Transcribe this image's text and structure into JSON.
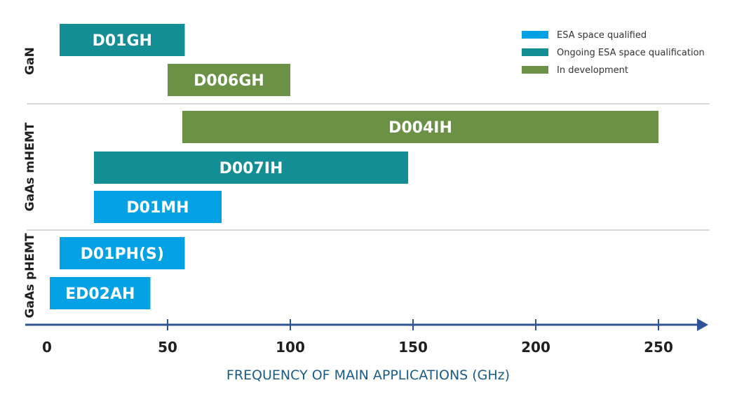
{
  "chart_data": {
    "type": "bar",
    "orientation": "horizontal-range",
    "xlabel": "FREQUENCY OF MAIN APPLICATIONS (GHz)",
    "xlim": [
      0,
      265
    ],
    "x_ticks": [
      0,
      50,
      100,
      150,
      200,
      250
    ],
    "groups": [
      "GaN",
      "GaAs mHEMT",
      "GaAs pHEMT"
    ],
    "categories": {
      "esa_qualified": {
        "name": "ESA space qualified",
        "color": "#04a2e4"
      },
      "ongoing": {
        "name": "Ongoing ESA space qualification",
        "color": "#148e95"
      },
      "in_dev": {
        "name": "In development",
        "color": "#6a9144"
      }
    },
    "bars": [
      {
        "label": "D01GH",
        "group": "GaN",
        "start": 6,
        "end": 57,
        "category": "ongoing"
      },
      {
        "label": "D006GH",
        "group": "GaN",
        "start": 50,
        "end": 100,
        "category": "in_dev"
      },
      {
        "label": "D004IH",
        "group": "GaAs mHEMT",
        "start": 56,
        "end": 250,
        "category": "in_dev"
      },
      {
        "label": "D007IH",
        "group": "GaAs mHEMT",
        "start": 20,
        "end": 148,
        "category": "ongoing"
      },
      {
        "label": "D01MH",
        "group": "GaAs mHEMT",
        "start": 20,
        "end": 72,
        "category": "esa_qualified"
      },
      {
        "label": "D01PH(S)",
        "group": "GaAs pHEMT",
        "start": 6,
        "end": 57,
        "category": "esa_qualified"
      },
      {
        "label": "ED02AH",
        "group": "GaAs pHEMT",
        "start": 2,
        "end": 43,
        "category": "esa_qualified"
      }
    ],
    "legend": {
      "position": "top-right",
      "entries": [
        "ESA space qualified",
        "Ongoing ESA space qualification",
        "In development"
      ]
    },
    "colors": {
      "axis": "#2f5496",
      "axis_title": "#1a5b85",
      "group_divider": "#b5b5b5"
    }
  }
}
